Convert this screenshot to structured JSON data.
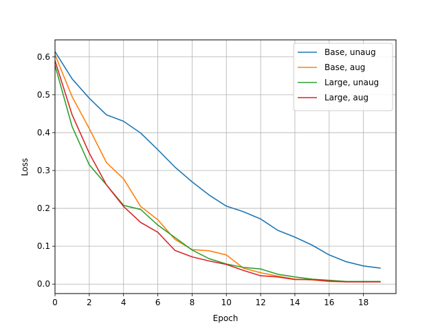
{
  "chart_data": {
    "type": "line",
    "title": "",
    "xlabel": "Epoch",
    "ylabel": "Loss",
    "xlim": [
      0,
      19.9
    ],
    "ylim": [
      -0.025,
      0.645
    ],
    "xticks": [
      0,
      2,
      4,
      6,
      8,
      10,
      12,
      14,
      16,
      18
    ],
    "yticks": [
      0.0,
      0.1,
      0.2,
      0.3,
      0.4,
      0.5,
      0.6
    ],
    "grid": true,
    "legend_position": "top-right",
    "x": [
      0,
      1,
      2,
      3,
      4,
      5,
      6,
      7,
      8,
      9,
      10,
      11,
      12,
      13,
      14,
      15,
      16,
      17,
      18,
      19
    ],
    "series": [
      {
        "name": "Base, unaug",
        "color": "#1f77b4",
        "values": [
          0.614,
          0.542,
          0.491,
          0.447,
          0.43,
          0.399,
          0.355,
          0.309,
          0.27,
          0.235,
          0.206,
          0.191,
          0.172,
          0.142,
          0.124,
          0.103,
          0.077,
          0.059,
          0.048,
          0.042
        ]
      },
      {
        "name": "Base, aug",
        "color": "#ff7f0e",
        "values": [
          0.606,
          0.495,
          0.411,
          0.321,
          0.278,
          0.205,
          0.17,
          0.118,
          0.091,
          0.088,
          0.077,
          0.042,
          0.03,
          0.021,
          0.013,
          0.011,
          0.007,
          0.006,
          0.006,
          0.006
        ]
      },
      {
        "name": "Large, unaug",
        "color": "#2ca02c",
        "values": [
          0.578,
          0.416,
          0.315,
          0.262,
          0.208,
          0.197,
          0.156,
          0.123,
          0.09,
          0.067,
          0.053,
          0.044,
          0.04,
          0.026,
          0.019,
          0.013,
          0.01,
          0.007,
          0.007,
          0.007
        ]
      },
      {
        "name": "Large, aug",
        "color": "#d62728",
        "values": [
          0.59,
          0.447,
          0.346,
          0.262,
          0.205,
          0.163,
          0.137,
          0.089,
          0.072,
          0.061,
          0.052,
          0.036,
          0.022,
          0.019,
          0.012,
          0.012,
          0.008,
          0.006,
          0.006,
          0.006
        ]
      }
    ]
  }
}
